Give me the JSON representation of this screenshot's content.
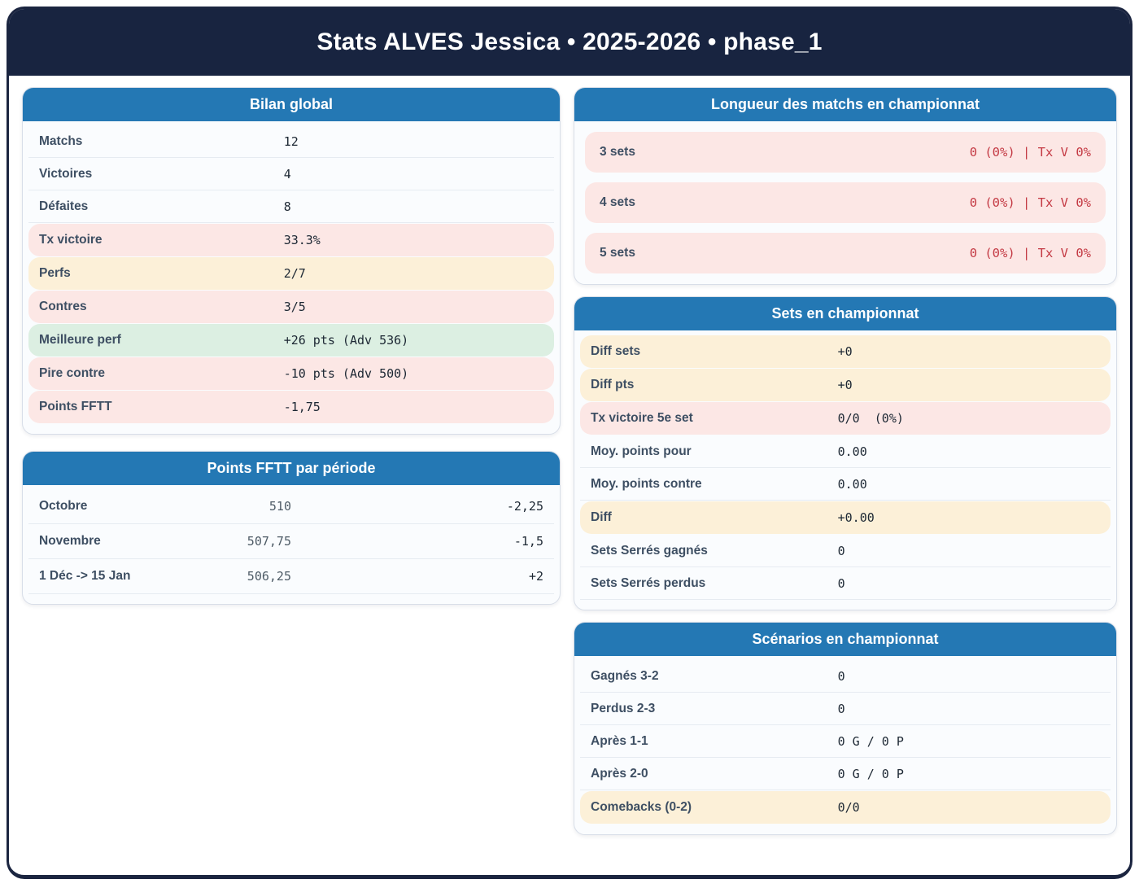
{
  "title": "Stats ALVES Jessica • 2025-2026 • phase_1",
  "colors": {
    "header_navy": "#182440",
    "card_header_blue": "#2478b4",
    "highlight_pink": "#fce7e5",
    "highlight_yellow": "#fcf0d8",
    "highlight_green": "#dcefe2",
    "negative_red": "#c43a44"
  },
  "cards": {
    "bilan": {
      "title": "Bilan global",
      "rows": [
        {
          "label": "Matchs",
          "value": "12"
        },
        {
          "label": "Victoires",
          "value": "4"
        },
        {
          "label": "Défaites",
          "value": "8"
        },
        {
          "label": "Tx victoire",
          "value": "33.3%"
        },
        {
          "label": "Perfs",
          "value": "2/7"
        },
        {
          "label": "Contres",
          "value": "3/5"
        },
        {
          "label": "Meilleure perf",
          "value": "+26 pts (Adv 536)"
        },
        {
          "label": "Pire contre",
          "value": "-10 pts (Adv 500)"
        },
        {
          "label": "Points FFTT",
          "value": "-1,75"
        }
      ]
    },
    "periode": {
      "title": "Points FFTT par période",
      "rows": [
        {
          "label": "Octobre",
          "points": "510",
          "delta": "-2,25"
        },
        {
          "label": "Novembre",
          "points": "507,75",
          "delta": "-1,5"
        },
        {
          "label": "1 Déc -> 15 Jan",
          "points": "506,25",
          "delta": "+2"
        }
      ]
    },
    "longueur": {
      "title": "Longueur des matchs en championnat",
      "rows": [
        {
          "label": "3 sets",
          "value": "0 (0%) | Tx V 0%"
        },
        {
          "label": "4 sets",
          "value": "0 (0%) | Tx V 0%"
        },
        {
          "label": "5 sets",
          "value": "0 (0%) | Tx V 0%"
        }
      ]
    },
    "sets": {
      "title": "Sets en championnat",
      "rows": [
        {
          "label": "Diff sets",
          "value": "+0"
        },
        {
          "label": "Diff pts",
          "value": "+0"
        },
        {
          "label": "Tx victoire 5e set",
          "value": "0/0  (0%)"
        },
        {
          "label": "Moy. points pour",
          "value": "0.00"
        },
        {
          "label": "Moy. points contre",
          "value": "0.00"
        },
        {
          "label": "Diff",
          "value": "+0.00"
        },
        {
          "label": "Sets Serrés gagnés",
          "value": "0"
        },
        {
          "label": "Sets Serrés perdus",
          "value": "0"
        }
      ]
    },
    "scenarios": {
      "title": "Scénarios en championnat",
      "rows": [
        {
          "label": "Gagnés 3-2",
          "value": "0"
        },
        {
          "label": "Perdus 2-3",
          "value": "0"
        },
        {
          "label": "Après 1-1",
          "value": "0 G / 0 P"
        },
        {
          "label": "Après 2-0",
          "value": "0 G / 0 P"
        },
        {
          "label": "Comebacks (0-2)",
          "value": "0/0"
        }
      ]
    }
  }
}
